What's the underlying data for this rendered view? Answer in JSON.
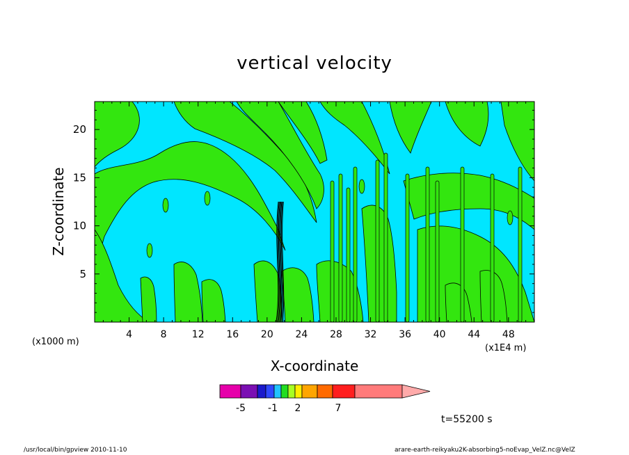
{
  "chart_data": {
    "type": "heatmap",
    "title": "vertical velocity",
    "xlabel": "X-coordinate",
    "ylabel": "Z-coordinate",
    "x_unit_left": "(x1000 m)",
    "x_unit_right": "(x1E4 m)",
    "xlim": [
      0,
      51
    ],
    "ylim": [
      0,
      22.9
    ],
    "xticks": [
      "4",
      "8",
      "12",
      "16",
      "20",
      "24",
      "28",
      "32",
      "36",
      "40",
      "44",
      "48"
    ],
    "yticks": [
      "5",
      "10",
      "15",
      "20"
    ],
    "time_label": "t=55200 s",
    "colorbar": {
      "colors": [
        "#e600aa",
        "#7b0fb3",
        "#1a1acc",
        "#2f49ff",
        "#22c3ff",
        "#22dd22",
        "#a8ff22",
        "#ffee00",
        "#ffa500",
        "#ff6a00",
        "#ff1e1e",
        "#ff7a7a",
        "#ffaaaa"
      ],
      "labels": [
        "-5",
        "-1",
        "2",
        "7"
      ]
    },
    "field_colors": {
      "low": "#00e6ff",
      "high": "#33e60f",
      "strong_down": "#000000"
    }
  },
  "footer": {
    "left": "/usr/local/bin/gpview  2010-11-10",
    "right": "arare-earth-reikyaku2K-absorbing5-noEvap_VelZ.nc@VelZ"
  }
}
